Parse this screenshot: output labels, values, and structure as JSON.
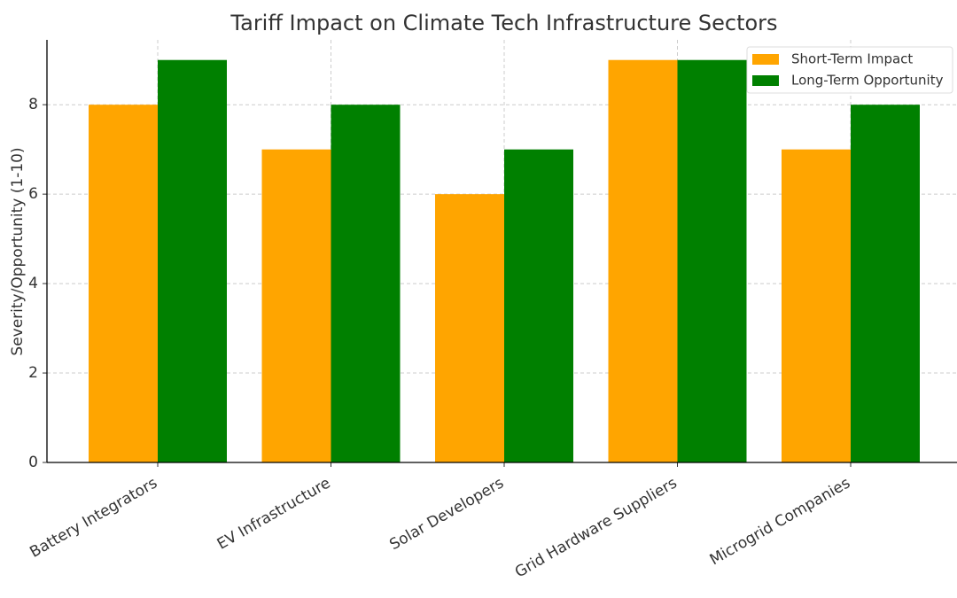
{
  "chart_data": {
    "type": "bar",
    "title": "Tariff Impact on Climate Tech Infrastructure Sectors",
    "y_label": "Severity/Opportunity (1-10)",
    "categories": [
      "Battery Integrators",
      "EV Infrastructure",
      "Solar Developers",
      "Grid Hardware Suppliers",
      "Microgrid Companies"
    ],
    "series": [
      {
        "name": "Short-Term Impact",
        "color": "#ffa500",
        "values": [
          8,
          7,
          6,
          9,
          7
        ]
      },
      {
        "name": "Long-Term Opportunity",
        "color": "#008000",
        "values": [
          9,
          8,
          7,
          9,
          8
        ]
      }
    ],
    "ylim": [
      0,
      9.45
    ],
    "yticks": [
      0,
      2,
      4,
      6,
      8
    ],
    "grid": true,
    "legend": "upper-right"
  }
}
